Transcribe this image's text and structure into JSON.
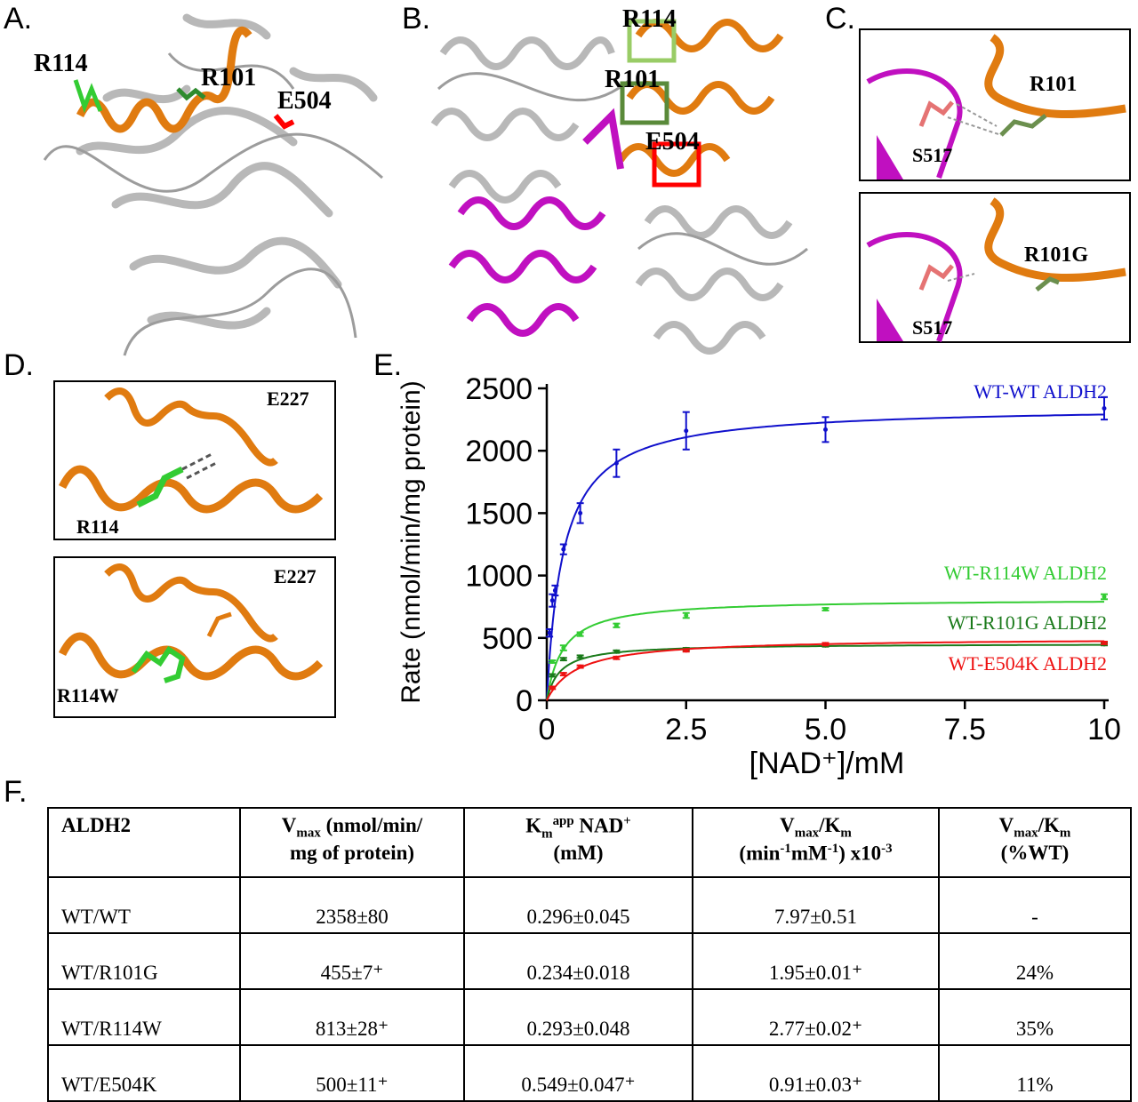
{
  "panels": {
    "a": {
      "letter": "A.",
      "labels": [
        "R114",
        "R101",
        "E504"
      ]
    },
    "b": {
      "letter": "B.",
      "labels": [
        "R114",
        "R101",
        "E504"
      ]
    },
    "c": {
      "letter": "C.",
      "top": {
        "residue": "R101",
        "partner": "S517"
      },
      "bottom": {
        "residue": "R101G",
        "partner": "S517"
      }
    },
    "d": {
      "letter": "D.",
      "top": {
        "residue": "R114",
        "partner": "E227"
      },
      "bottom": {
        "residue": "R114W",
        "partner": "E227"
      }
    },
    "e": {
      "letter": "E."
    },
    "f": {
      "letter": "F."
    }
  },
  "colors": {
    "protein_gray": "#bdbdbd",
    "helix_orange": "#e07b10",
    "magenta": "#c010c0",
    "residue_green": "#33cc33",
    "highlight_red": "#ff0000",
    "box_light_green": "#99cc66",
    "box_dark_green": "#5a8a3a"
  },
  "chart_data": {
    "type": "line",
    "xlabel": "[NAD⁺]/mM",
    "ylabel": "Rate (nmol/min/mg protein)",
    "xlim": [
      0,
      10
    ],
    "ylim": [
      0,
      2500
    ],
    "xticks": [
      "0",
      "2.5",
      "5.0",
      "7.5",
      "10"
    ],
    "xtick_values": [
      0,
      2.5,
      5.0,
      7.5,
      10
    ],
    "yticks": [
      "0",
      "500",
      "1000",
      "1500",
      "2000",
      "2500"
    ],
    "ytick_values": [
      0,
      500,
      1000,
      1500,
      2000,
      2500
    ],
    "series": [
      {
        "name": "WT-WT ALDH2",
        "color": "#1010cc",
        "vmax": 2358,
        "km": 0.296,
        "points": [
          [
            0.05,
            540
          ],
          [
            0.1,
            800
          ],
          [
            0.15,
            880
          ],
          [
            0.3,
            1210
          ],
          [
            0.6,
            1500
          ],
          [
            1.25,
            1900
          ],
          [
            2.5,
            2160
          ],
          [
            5.0,
            2170
          ],
          [
            10,
            2340
          ]
        ],
        "errors": [
          30,
          50,
          40,
          40,
          80,
          110,
          150,
          100,
          90
        ]
      },
      {
        "name": "WT-R114W ALDH2",
        "color": "#33cc33",
        "vmax": 813,
        "km": 0.293,
        "points": [
          [
            0.1,
            310
          ],
          [
            0.3,
            420
          ],
          [
            0.6,
            530
          ],
          [
            1.25,
            600
          ],
          [
            2.5,
            680
          ],
          [
            5.0,
            730
          ],
          [
            10,
            830
          ]
        ],
        "errors": [
          10,
          20,
          15,
          15,
          20,
          10,
          20
        ]
      },
      {
        "name": "WT-R101G ALDH2",
        "color": "#1a7a1a",
        "vmax": 455,
        "km": 0.234,
        "points": [
          [
            0.1,
            200
          ],
          [
            0.3,
            330
          ],
          [
            0.6,
            350
          ],
          [
            1.25,
            390
          ],
          [
            2.5,
            410
          ],
          [
            5.0,
            440
          ],
          [
            10,
            450
          ]
        ],
        "errors": [
          10,
          10,
          10,
          10,
          10,
          10,
          10
        ]
      },
      {
        "name": "WT-E504K ALDH2",
        "color": "#ee1111",
        "vmax": 500,
        "km": 0.549,
        "points": [
          [
            0.1,
            100
          ],
          [
            0.3,
            210
          ],
          [
            0.6,
            270
          ],
          [
            1.25,
            340
          ],
          [
            2.5,
            400
          ],
          [
            5.0,
            450
          ],
          [
            10,
            460
          ]
        ],
        "errors": [
          10,
          10,
          10,
          10,
          10,
          10,
          10
        ]
      }
    ]
  },
  "table": {
    "headers": [
      "ALDH2",
      "V_max (nmol/min/ mg of protein)",
      "K_m^app NAD+ (mM)",
      "V_max/K_m (min-1mM-1) x10-3",
      "V_max/K_m (%WT)"
    ],
    "rows": [
      [
        "WT/WT",
        "2358±80",
        "0.296±0.045",
        "7.97±0.51",
        "-"
      ],
      [
        "WT/R101G",
        "455±7⁺",
        "0.234±0.018",
        "1.95±0.01⁺",
        "24%"
      ],
      [
        "WT/R114W",
        "813±28⁺",
        "0.293±0.048",
        "2.77±0.02⁺",
        "35%"
      ],
      [
        "WT/E504K",
        "500±11⁺",
        "0.549±0.047⁺",
        "0.91±0.03⁺",
        "11%"
      ]
    ]
  }
}
